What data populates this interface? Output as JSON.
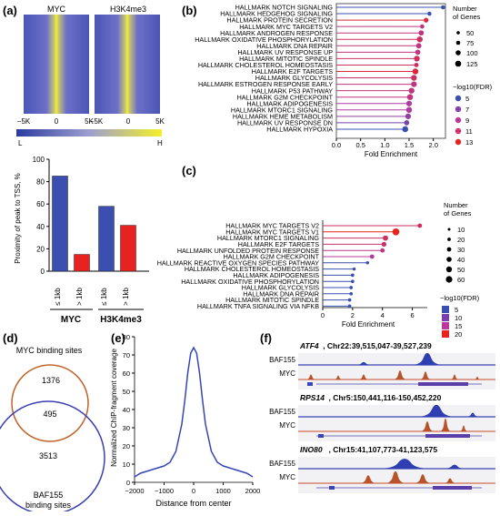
{
  "panels": {
    "a": {
      "label": "(a)",
      "heatmap_titles": [
        "MYC",
        "H3K4me3"
      ],
      "heatmap_ticks": [
        "−5K",
        "0",
        "5K"
      ],
      "colorbar_labels": [
        "L",
        "H"
      ],
      "bar_ylabel": "Proximity of peak to TSS, %",
      "bar_yticks": [
        "0",
        "20",
        "40",
        "60",
        "80",
        "100"
      ],
      "bar_xticks": [
        "≤ 1kb",
        "> 1kb",
        "≤ 1kb",
        "> 1kb"
      ],
      "group_labels": [
        "MYC",
        "H3K4me3"
      ]
    },
    "b": {
      "label": "(b)",
      "xlabel": "Fold Enrichment",
      "xticks": [
        "0.0",
        "0.5",
        "1.0",
        "1.5",
        "2.0"
      ],
      "size_legend_title": "Number of Genes",
      "size_legend": [
        "50",
        "75",
        "100",
        "125"
      ],
      "color_legend_title": "−log10(FDR)",
      "color_legend": [
        "5",
        "7",
        "9",
        "11",
        "13"
      ]
    },
    "c": {
      "label": "(c)",
      "xlabel": "Fold Enrichment",
      "xticks": [
        "0",
        "2",
        "4",
        "6"
      ],
      "size_legend_title": "Number of Genes",
      "size_legend": [
        "10",
        "20",
        "30",
        "40",
        "50",
        "60"
      ],
      "color_legend_title": "−log10(FDR)",
      "color_legend": [
        "5",
        "10",
        "15",
        "20"
      ]
    },
    "d": {
      "label": "(d)",
      "top_label": "MYC binding sites",
      "bottom_label": "BAF155 binding sites",
      "counts": [
        "1376",
        "495",
        "3513"
      ]
    },
    "e": {
      "label": "(e)",
      "ylabel": "Normalized ChIP-fragment coverage",
      "xlabel": "Distance from center",
      "yticks": [
        "0",
        "10",
        "20",
        "30",
        "40",
        "50",
        "60",
        "70",
        "80"
      ],
      "xticks": [
        "−2000",
        "−1000",
        "0",
        "1000",
        "2000"
      ]
    },
    "f": {
      "label": "(f)",
      "tracks": [
        {
          "gene": "ATF4",
          "coords": ", Chr22:39,515,047-39,527,239",
          "rows": [
            "BAF155",
            "MYC"
          ]
        },
        {
          "gene": "RPS14",
          "coords": ", Chr5:150,441,116-150,452,220",
          "rows": [
            "BAF155",
            "MYC"
          ]
        },
        {
          "gene": "INO80",
          "coords": ", Chr15:41,107,773-41,123,575",
          "rows": [
            "BAF155",
            "MYC"
          ]
        }
      ]
    }
  },
  "chart_data": [
    {
      "type": "bar",
      "panel": "a",
      "categories": [
        "MYC ≤ 1kb",
        "MYC > 1kb",
        "H3K4me3 ≤ 1kb",
        "H3K4me3 > 1kb"
      ],
      "values": [
        85,
        15,
        58,
        41
      ],
      "colors": [
        "#3b4fb0",
        "#e8231f",
        "#3b4fb0",
        "#e8231f"
      ],
      "ylabel": "Proximity of peak to TSS, %",
      "ylim": [
        0,
        100
      ]
    },
    {
      "type": "scatter",
      "panel": "b",
      "categories": [
        "HALLMARK NOTCH SIGNALING",
        "HALLMARK HEDGEHOG SIGNALING",
        "HALLMARK PROTEIN SECRETION",
        "HALLMARK MYC TARGETS V2",
        "HALLMARK ANDROGEN RESPONSE",
        "HALLMARK OXIDATIVE PHOSPHORYLATION",
        "HALLMARK DNA REPAIR",
        "HALLMARK UV RESPONSE UP",
        "HALLMARK MITOTIC SPINDLE",
        "HALLMARK CHOLESTEROL HOMEOSTASIS",
        "HALLMARK E2F TARGETS",
        "HALLMARK GLYCOLYSIS",
        "HALLMARK ESTROGEN RESPONSE EARLY",
        "HALLMARK P53 PATHWAY",
        "HALLMARK G2M CHECKPOINT",
        "HALLMARK ADIPOGENESIS",
        "HALLMARK MTORC1 SIGNALING",
        "HALLMARK HEME METABOLISM",
        "HALLMARK UV RESPONSE DN",
        "HALLMARK HYPOXIA"
      ],
      "values": [
        2.2,
        1.92,
        1.85,
        1.77,
        1.75,
        1.72,
        1.7,
        1.68,
        1.66,
        1.65,
        1.63,
        1.6,
        1.6,
        1.55,
        1.52,
        1.5,
        1.5,
        1.48,
        1.45,
        1.42
      ],
      "fdr": [
        5,
        5,
        12,
        10,
        10,
        11,
        10,
        10,
        11,
        11,
        12,
        11,
        10,
        10,
        10,
        9,
        9,
        8,
        7,
        5
      ],
      "genes": [
        40,
        40,
        60,
        45,
        75,
        100,
        80,
        75,
        95,
        50,
        100,
        95,
        90,
        95,
        100,
        90,
        100,
        90,
        75,
        100
      ],
      "xlabel": "Fold Enrichment",
      "xlim": [
        0,
        2.25
      ]
    },
    {
      "type": "scatter",
      "panel": "c",
      "categories": [
        "HALLMARK MYC TARGETS V2",
        "HALLMARK MYC TARGETS V1",
        "HALLMARK MTORC1 SIGNALING",
        "HALLMARK E2F TARGETS",
        "HALLMARK UNFOLDED PROTEIN RESPONSE",
        "HALLMARK G2M CHECKPOINT",
        "HALLMARK REACTIVE OXYGEN SPECIES PATHWAY",
        "HALLMARK CHOLESTEROL HOMEOSTASIS",
        "HALLMARK ADIPOGENESIS",
        "HALLMARK OXIDATIVE PHOSPHORYLATION",
        "HALLMARK GLYCOLYSIS",
        "HALLMARK DNA REPAIR",
        "HALLMARK MITOTIC SPINDLE",
        "HALLMARK TNFA SIGNALING VIA NFKB"
      ],
      "values": [
        6.5,
        4.9,
        4.2,
        4.1,
        4.0,
        3.3,
        3.0,
        2.1,
        2.0,
        2.0,
        1.9,
        1.9,
        1.8,
        1.8
      ],
      "fdr": [
        18,
        22,
        18,
        17,
        15,
        14,
        5,
        5,
        5,
        5,
        5,
        5,
        5,
        5
      ],
      "genes": [
        25,
        55,
        35,
        30,
        25,
        25,
        10,
        10,
        12,
        12,
        12,
        12,
        12,
        12
      ],
      "xlabel": "Fold Enrichment",
      "xlim": [
        0,
        7
      ]
    },
    {
      "type": "line",
      "panel": "e",
      "x": [
        -2000,
        -1800,
        -1600,
        -1400,
        -1200,
        -1000,
        -800,
        -600,
        -400,
        -300,
        -200,
        -100,
        0,
        100,
        200,
        300,
        400,
        600,
        800,
        1000,
        1200,
        1400,
        1600,
        1800,
        2000
      ],
      "y": [
        3,
        5,
        6,
        7,
        8,
        9,
        11,
        17,
        32,
        45,
        60,
        71,
        74,
        71,
        60,
        45,
        32,
        17,
        11,
        9,
        8,
        7,
        6,
        5,
        3
      ],
      "xlabel": "Distance from center",
      "ylabel": "Normalized ChIP-fragment coverage",
      "xlim": [
        -2000,
        2000
      ],
      "ylim": [
        0,
        80
      ]
    }
  ]
}
